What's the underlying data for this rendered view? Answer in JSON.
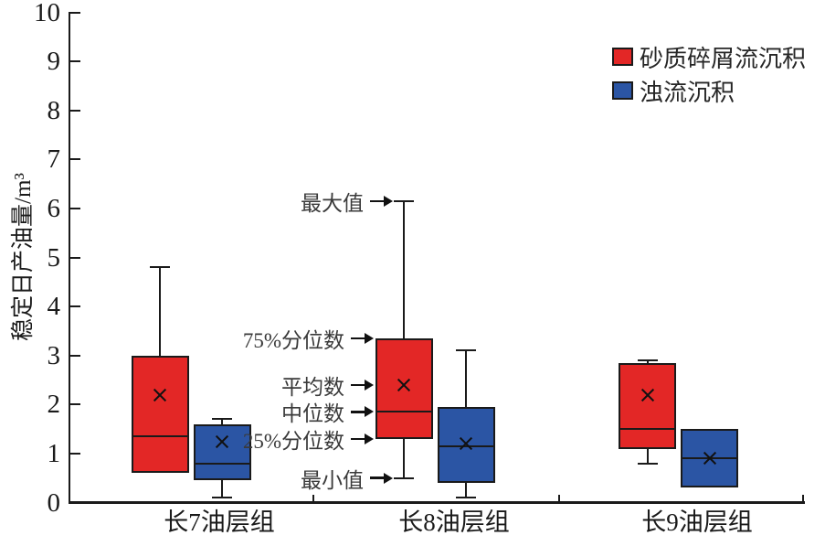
{
  "chart_data": {
    "type": "boxplot",
    "title": "",
    "xlabel": "",
    "ylabel": "稳定日产油量/m³",
    "ylim": [
      0,
      10
    ],
    "ytick_step": 1,
    "grid": false,
    "legend_position": "top-right",
    "series": [
      {
        "name": "砂质碎屑流沉积",
        "color": "#e32726"
      },
      {
        "name": "浊流沉积",
        "color": "#2b55a4"
      }
    ],
    "groups": [
      {
        "label": "长7油层组",
        "boxes": [
          {
            "series": "砂质碎屑流沉积",
            "min": 0.6,
            "q1": 0.6,
            "median": 1.35,
            "mean": 2.2,
            "q3": 3.0,
            "max": 4.8
          },
          {
            "series": "浊流沉积",
            "min": 0.1,
            "q1": 0.45,
            "median": 0.8,
            "mean": 1.25,
            "q3": 1.6,
            "max": 1.7
          }
        ]
      },
      {
        "label": "长8油层组",
        "boxes": [
          {
            "series": "砂质碎屑流沉积",
            "min": 0.5,
            "q1": 1.3,
            "median": 1.85,
            "mean": 2.4,
            "q3": 3.35,
            "max": 6.15
          },
          {
            "series": "浊流沉积",
            "min": 0.1,
            "q1": 0.4,
            "median": 1.15,
            "mean": 1.2,
            "q3": 1.95,
            "max": 3.1
          }
        ]
      },
      {
        "label": "长9油层组",
        "boxes": [
          {
            "series": "砂质碎屑流沉积",
            "min": 0.8,
            "q1": 1.1,
            "median": 1.5,
            "mean": 2.2,
            "q3": 2.85,
            "max": 2.9
          },
          {
            "series": "浊流沉积",
            "min": 0.3,
            "q1": 0.3,
            "median": 0.9,
            "mean": 0.9,
            "q3": 1.5,
            "max": 1.5
          }
        ]
      }
    ],
    "annotations": [
      {
        "label": "最大值",
        "value": 6.15,
        "points_to": "whisker-top"
      },
      {
        "label": "75%分位数",
        "value": 3.35,
        "points_to": "q3"
      },
      {
        "label": "平均数",
        "value": 2.4,
        "points_to": "mean"
      },
      {
        "label": "中位数",
        "value": 1.85,
        "points_to": "median"
      },
      {
        "label": "25%分位数",
        "value": 1.3,
        "points_to": "q1"
      },
      {
        "label": "最小值",
        "value": 0.5,
        "points_to": "whisker-bottom"
      }
    ],
    "colors": {
      "box_border": "#1a1a1a",
      "axis": "#1a1a1a",
      "annotation_text": "#3a3a3a"
    }
  }
}
